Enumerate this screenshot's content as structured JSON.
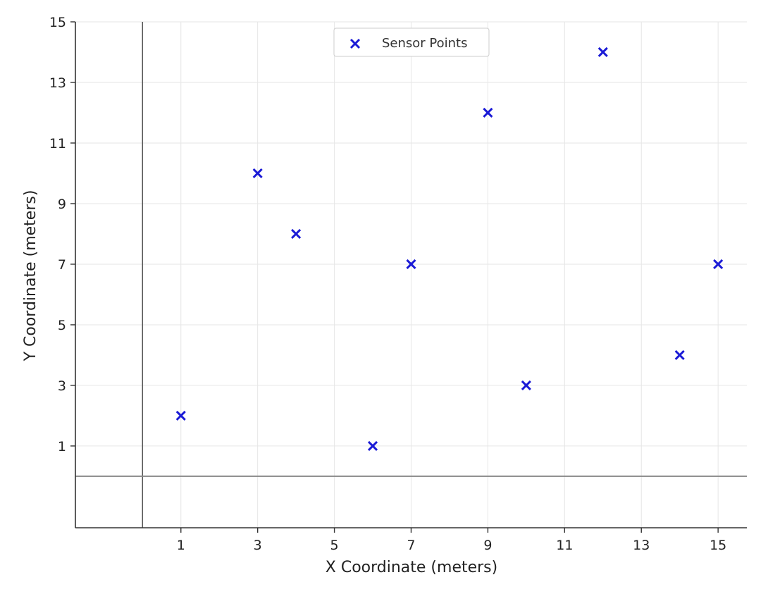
{
  "chart_data": {
    "type": "scatter",
    "title": "",
    "xlabel": "X Coordinate (meters)",
    "ylabel": "Y Coordinate (meters)",
    "xlim": [
      -1.75,
      15.75
    ],
    "ylim": [
      -1.7,
      15
    ],
    "x_ticks": [
      1,
      3,
      5,
      7,
      9,
      11,
      13,
      15
    ],
    "y_ticks": [
      1,
      3,
      5,
      7,
      9,
      11,
      13,
      15
    ],
    "grid": true,
    "reference_lines": {
      "vertical_x": 0,
      "horizontal_y": 0
    },
    "legend": {
      "position": "top-center"
    },
    "series": [
      {
        "name": "Sensor Points",
        "marker": "x",
        "color": "#1a1ad6",
        "points": [
          {
            "x": 1,
            "y": 2
          },
          {
            "x": 3,
            "y": 10
          },
          {
            "x": 4,
            "y": 8
          },
          {
            "x": 6,
            "y": 1
          },
          {
            "x": 7,
            "y": 7
          },
          {
            "x": 9,
            "y": 12
          },
          {
            "x": 10,
            "y": 3
          },
          {
            "x": 12,
            "y": 14
          },
          {
            "x": 14,
            "y": 4
          },
          {
            "x": 15,
            "y": 7
          }
        ]
      }
    ]
  }
}
